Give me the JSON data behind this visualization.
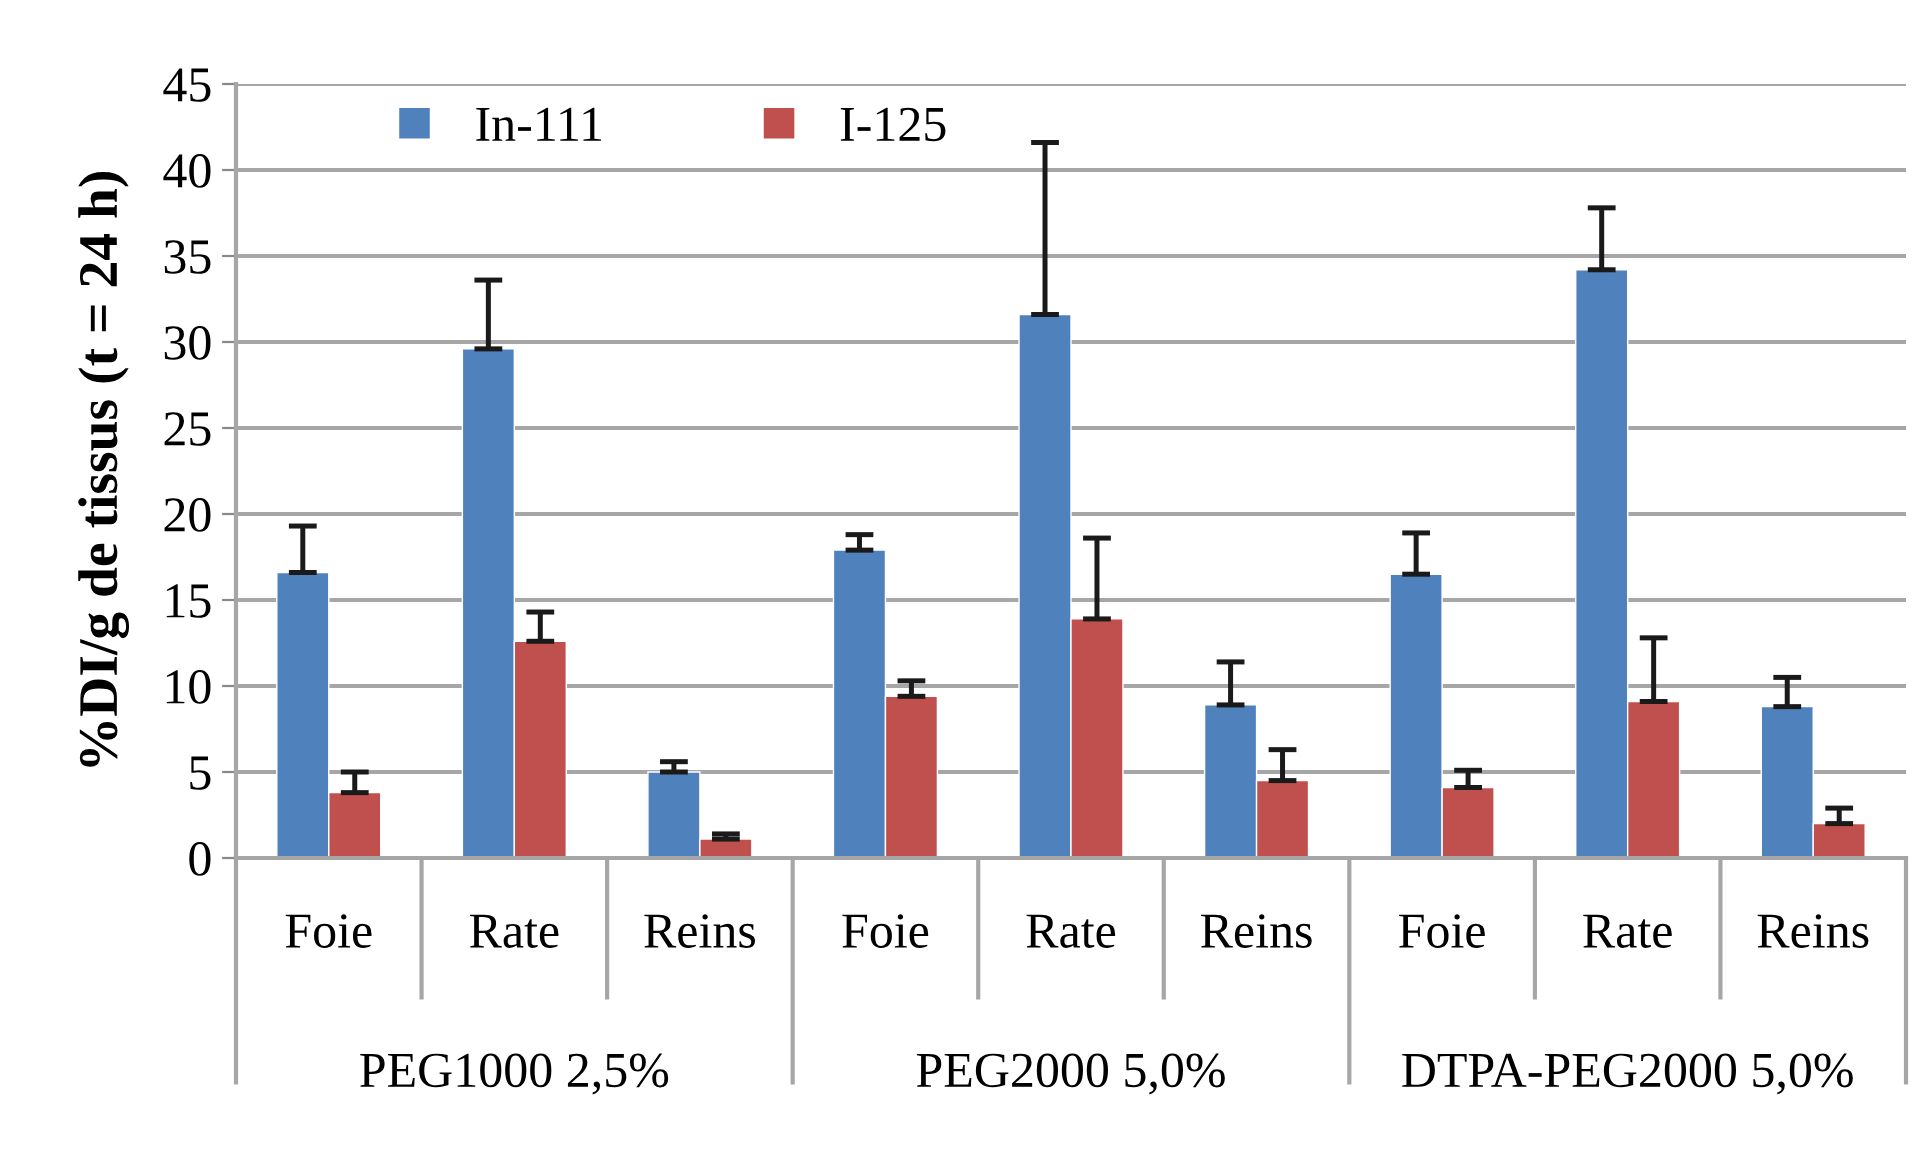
{
  "chart_data": {
    "type": "bar",
    "ylabel": "%DI/g de tissus (t = 24 h)",
    "categories": [
      "Foie",
      "Rate",
      "Reins",
      "Foie",
      "Rate",
      "Reins",
      "Foie",
      "Rate",
      "Reins"
    ],
    "annotations": [
      "PEG1000 2,5%",
      "PEG2000 5,0%",
      "DTPA-PEG2000 5,0%"
    ],
    "series": [
      {
        "name": "In-111",
        "color": "#4f81bd",
        "values": [
          16.6,
          29.6,
          5.0,
          17.9,
          31.6,
          8.9,
          16.5,
          34.2,
          8.8
        ],
        "errors": [
          [
            16.6,
            19.3
          ],
          [
            29.6,
            33.6
          ],
          [
            5.0,
            5.6
          ],
          [
            17.9,
            18.8
          ],
          [
            31.6,
            41.6
          ],
          [
            8.9,
            11.4
          ],
          [
            16.5,
            18.9
          ],
          [
            34.2,
            37.8
          ],
          [
            8.8,
            10.5
          ]
        ]
      },
      {
        "name": "I-125",
        "color": "#c0504d",
        "values": [
          3.8,
          12.6,
          1.1,
          9.4,
          13.9,
          4.5,
          4.1,
          9.1,
          2.0
        ],
        "errors": [
          [
            3.8,
            5.0
          ],
          [
            12.6,
            14.3
          ],
          [
            1.1,
            1.4
          ],
          [
            9.4,
            10.3
          ],
          [
            13.9,
            18.6
          ],
          [
            4.5,
            6.3
          ],
          [
            4.1,
            5.1
          ],
          [
            9.1,
            12.8
          ],
          [
            2.0,
            2.9
          ]
        ]
      }
    ],
    "ylim": [
      0,
      45
    ],
    "yticks": [
      0,
      5,
      10,
      15,
      20,
      25,
      30,
      35,
      40,
      45
    ],
    "grid": "y",
    "legend": "top left"
  }
}
